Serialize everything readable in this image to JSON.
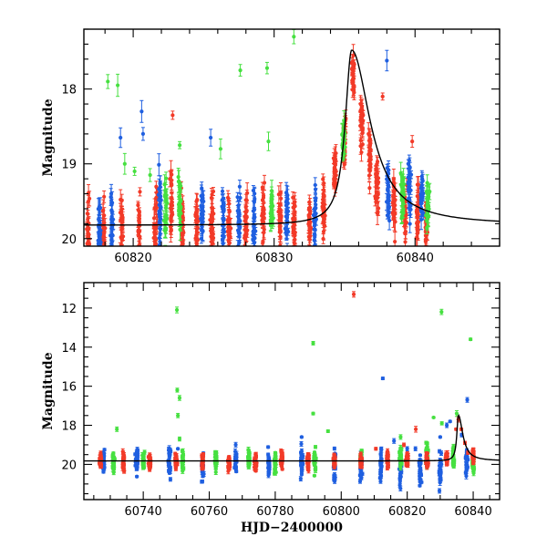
{
  "colors": {
    "blue": "#1f5fe0",
    "red": "#f23a28",
    "green": "#46e040",
    "model": "#000000"
  },
  "chart_data": [
    {
      "type": "scatter",
      "title": "",
      "xlabel": "",
      "ylabel": "Magnitude",
      "xlim": [
        60816.5,
        60846
      ],
      "ylim": [
        20.1,
        17.2
      ],
      "y_inverted": true,
      "x_major_ticks": [
        60820,
        60830,
        60840
      ],
      "x_tick_labels": [
        "60820",
        "60830",
        "60840"
      ],
      "y_major_ticks": [
        18,
        19,
        20
      ],
      "y_tick_labels": [
        "18",
        "19",
        "20"
      ],
      "model_curve": {
        "baseline": 19.82,
        "peak_x": 60835.5,
        "peak_mag": 17.48,
        "rise_tau": 0.55,
        "decay_tau": 1.6
      },
      "series": [
        {
          "color": "red",
          "groups": [
            [
              60816.8,
              19.9,
              1.4,
              0.15
            ],
            [
              60817.9,
              19.88,
              1.3,
              0.16
            ],
            [
              60819.2,
              19.85,
              1.2,
              0.17
            ],
            [
              60820.4,
              19.85,
              1.3,
              0.16
            ],
            [
              60821.6,
              19.87,
              1.5,
              0.16
            ],
            [
              60822.7,
              19.6,
              1.3,
              0.17
            ],
            [
              60823.5,
              19.9,
              1.4,
              0.16
            ],
            [
              60824.5,
              19.85,
              1.5,
              0.16
            ],
            [
              60825.6,
              19.85,
              1.3,
              0.17
            ],
            [
              60826.8,
              19.85,
              1.4,
              0.16
            ],
            [
              60828,
              19.82,
              1.4,
              0.16
            ],
            [
              60829.2,
              19.82,
              1.4,
              0.16
            ],
            [
              60830.4,
              19.8,
              1.3,
              0.16
            ],
            [
              60831.4,
              19.78,
              1.5,
              0.16
            ],
            [
              60832.5,
              19.7,
              1.3,
              0.16
            ],
            [
              60833.5,
              19.6,
              1.2,
              0.16
            ],
            [
              60834.3,
              19.1,
              0.9,
              0.15
            ],
            [
              60835,
              18.7,
              0.9,
              0.15
            ],
            [
              60835.6,
              17.8,
              0.8,
              0.15
            ],
            [
              60836.2,
              18.4,
              1.1,
              0.16
            ],
            [
              60836.8,
              18.9,
              1.0,
              0.16
            ],
            [
              60837.3,
              19.3,
              0.9,
              0.16
            ],
            [
              60838.5,
              19.6,
              1.0,
              0.16
            ],
            [
              60839.3,
              19.7,
              1.0,
              0.16
            ],
            [
              60840.2,
              19.7,
              1.0,
              0.16
            ],
            [
              60840.8,
              19.8,
              0.8,
              0.16
            ]
          ],
          "points": [
            [
              60822.8,
              18.35
            ],
            [
              60836.7,
              18.6
            ],
            [
              60837.7,
              18.1
            ],
            [
              60839.8,
              18.7
            ]
          ]
        },
        {
          "color": "blue",
          "groups": [
            [
              60817.6,
              19.85,
              1.0,
              0.15
            ],
            [
              60818.5,
              19.8,
              1.2,
              0.15
            ],
            [
              60821.9,
              19.6,
              1.4,
              0.15
            ],
            [
              60824.9,
              19.7,
              1.0,
              0.15
            ],
            [
              60826.4,
              19.75,
              1.2,
              0.15
            ],
            [
              60827.5,
              19.7,
              1.2,
              0.15
            ],
            [
              60828.6,
              19.8,
              1.2,
              0.15
            ],
            [
              60830.9,
              19.7,
              1.4,
              0.15
            ],
            [
              60832.9,
              19.75,
              1.3,
              0.15
            ],
            [
              60838.1,
              19.4,
              1.2,
              0.15
            ],
            [
              60839.6,
              19.4,
              1.3,
              0.15
            ],
            [
              60840.5,
              19.5,
              1.0,
              0.15
            ]
          ],
          "points": [
            [
              60819.1,
              18.65
            ],
            [
              60820.6,
              18.3
            ],
            [
              60820.7,
              18.6
            ],
            [
              60825.5,
              18.65
            ],
            [
              60838,
              17.62
            ]
          ]
        },
        {
          "color": "green",
          "groups": [
            [
              60822.3,
              19.6,
              1.3,
              0.15
            ],
            [
              60823.3,
              19.6,
              1.2,
              0.15
            ],
            [
              60829.8,
              19.6,
              1.0,
              0.15
            ],
            [
              60834.9,
              18.7,
              0.8,
              0.15
            ],
            [
              60839.1,
              19.4,
              1.0,
              0.15
            ],
            [
              60840.9,
              19.6,
              1.0,
              0.15
            ]
          ],
          "points": [
            [
              60818.2,
              17.9
            ],
            [
              60818.9,
              17.95
            ],
            [
              60819.4,
              19.0
            ],
            [
              60820.1,
              19.1
            ],
            [
              60821.2,
              19.15
            ],
            [
              60823.3,
              18.75
            ],
            [
              60826.2,
              18.8
            ],
            [
              60827.6,
              17.75
            ],
            [
              60829.5,
              17.72
            ],
            [
              60829.6,
              18.7
            ],
            [
              60831.4,
              17.3
            ]
          ]
        }
      ]
    },
    {
      "type": "scatter",
      "title": "",
      "xlabel": "HJD−2400000",
      "ylabel": "Magnitude",
      "xlim": [
        60722,
        60848
      ],
      "ylim": [
        21.8,
        10.7
      ],
      "y_inverted": true,
      "x_major_ticks": [
        60740,
        60760,
        60780,
        60800,
        60820,
        60840
      ],
      "x_tick_labels": [
        "60740",
        "60760",
        "60780",
        "60800",
        "60820",
        "60840"
      ],
      "y_major_ticks": [
        12,
        14,
        16,
        18,
        20
      ],
      "y_tick_labels": [
        "12",
        "14",
        "16",
        "18",
        "20"
      ],
      "model_curve": {
        "baseline": 19.82,
        "peak_x": 60835.5,
        "peak_mag": 17.48,
        "rise_tau": 0.55,
        "decay_tau": 1.6
      },
      "series": [
        {
          "color": "blue",
          "groups": [
            [
              60728,
              19.9,
              2.2,
              0.5
            ],
            [
              60738,
              19.8,
              2.0,
              0.5
            ],
            [
              60748,
              19.9,
              2.2,
              0.5
            ],
            [
              60758,
              20.1,
              2.2,
              0.5
            ],
            [
              60768,
              19.8,
              2.2,
              0.5
            ],
            [
              60778,
              20.0,
              2.2,
              0.5
            ],
            [
              60788,
              19.9,
              2.2,
              0.5
            ],
            [
              60798,
              20.0,
              2.4,
              0.5
            ],
            [
              60806,
              20.1,
              2.6,
              0.5
            ],
            [
              60812,
              20.0,
              2.6,
              0.5
            ],
            [
              60818,
              20.3,
              3.0,
              0.5
            ],
            [
              60824,
              20.4,
              3.0,
              0.5
            ],
            [
              60830,
              20.2,
              2.8,
              0.5
            ],
            [
              60838,
              19.9,
              2.2,
              0.5
            ]
          ],
          "points": [
            [
              60750.5,
              19.2
            ],
            [
              60788,
              18.6
            ],
            [
              60812.6,
              15.6
            ],
            [
              60816,
              18.8
            ],
            [
              60820,
              19.2
            ],
            [
              60822.5,
              19.2
            ],
            [
              60830,
              18.6
            ],
            [
              60832,
              18.0
            ],
            [
              60833,
              17.8
            ],
            [
              60838.2,
              16.7
            ],
            [
              60836.5,
              18.5
            ]
          ]
        },
        {
          "color": "green",
          "groups": [
            [
              60731,
              19.9,
              1.6,
              0.45
            ],
            [
              60740,
              19.85,
              1.6,
              0.45
            ],
            [
              60752,
              19.8,
              1.8,
              0.45
            ],
            [
              60762,
              19.85,
              1.6,
              0.45
            ],
            [
              60772,
              19.8,
              1.6,
              0.45
            ],
            [
              60780,
              19.9,
              1.8,
              0.45
            ],
            [
              60792,
              19.8,
              1.8,
              0.45
            ],
            [
              60806,
              19.7,
              1.6,
              0.45
            ],
            [
              60818,
              19.6,
              1.8,
              0.45
            ],
            [
              60826,
              19.5,
              1.8,
              0.45
            ],
            [
              60834,
              19.5,
              1.6,
              0.45
            ],
            [
              60840,
              19.9,
              2.0,
              0.45
            ]
          ],
          "points": [
            [
              60732,
              18.2
            ],
            [
              60750.2,
              12.1
            ],
            [
              60750.3,
              16.2
            ],
            [
              60751,
              16.6
            ],
            [
              60751,
              18.7
            ],
            [
              60750.5,
              17.5
            ],
            [
              60791.5,
              13.8
            ],
            [
              60791.5,
              17.4
            ],
            [
              60796,
              18.3
            ],
            [
              60818,
              18.6
            ],
            [
              60828,
              17.6
            ],
            [
              60830.4,
              12.2
            ],
            [
              60830.5,
              17.9
            ],
            [
              60839.2,
              13.6
            ],
            [
              60835,
              17.4
            ]
          ]
        },
        {
          "color": "red",
          "groups": [
            [
              60727,
              19.9,
              1.0,
              0.5
            ],
            [
              60734,
              19.85,
              1.1,
              0.5
            ],
            [
              60742,
              19.85,
              1.1,
              0.5
            ],
            [
              60750,
              19.8,
              1.2,
              0.5
            ],
            [
              60758,
              19.9,
              1.2,
              0.5
            ],
            [
              60766,
              19.85,
              1.2,
              0.5
            ],
            [
              60774,
              19.85,
              1.2,
              0.5
            ],
            [
              60782,
              19.8,
              1.2,
              0.5
            ],
            [
              60790,
              19.85,
              1.2,
              0.5
            ],
            [
              60798,
              19.8,
              1.2,
              0.5
            ],
            [
              60806,
              19.8,
              1.2,
              0.5
            ],
            [
              60814,
              19.8,
              1.2,
              0.5
            ],
            [
              60820,
              19.8,
              1.2,
              0.5
            ],
            [
              60826,
              19.8,
              1.2,
              0.5
            ],
            [
              60832,
              19.7,
              1.0,
              0.5
            ],
            [
              60840,
              19.6,
              1.0,
              0.5
            ]
          ],
          "points": [
            [
              60803.8,
              11.3
            ],
            [
              60810.5,
              19.2
            ],
            [
              60819,
              19.0
            ],
            [
              60822.6,
              18.2
            ],
            [
              60834.8,
              18.2
            ],
            [
              60835.5,
              17.7
            ],
            [
              60836.4,
              18.2
            ],
            [
              60837.5,
              18.9
            ],
            [
              60838.4,
              19.4
            ]
          ]
        }
      ]
    }
  ]
}
